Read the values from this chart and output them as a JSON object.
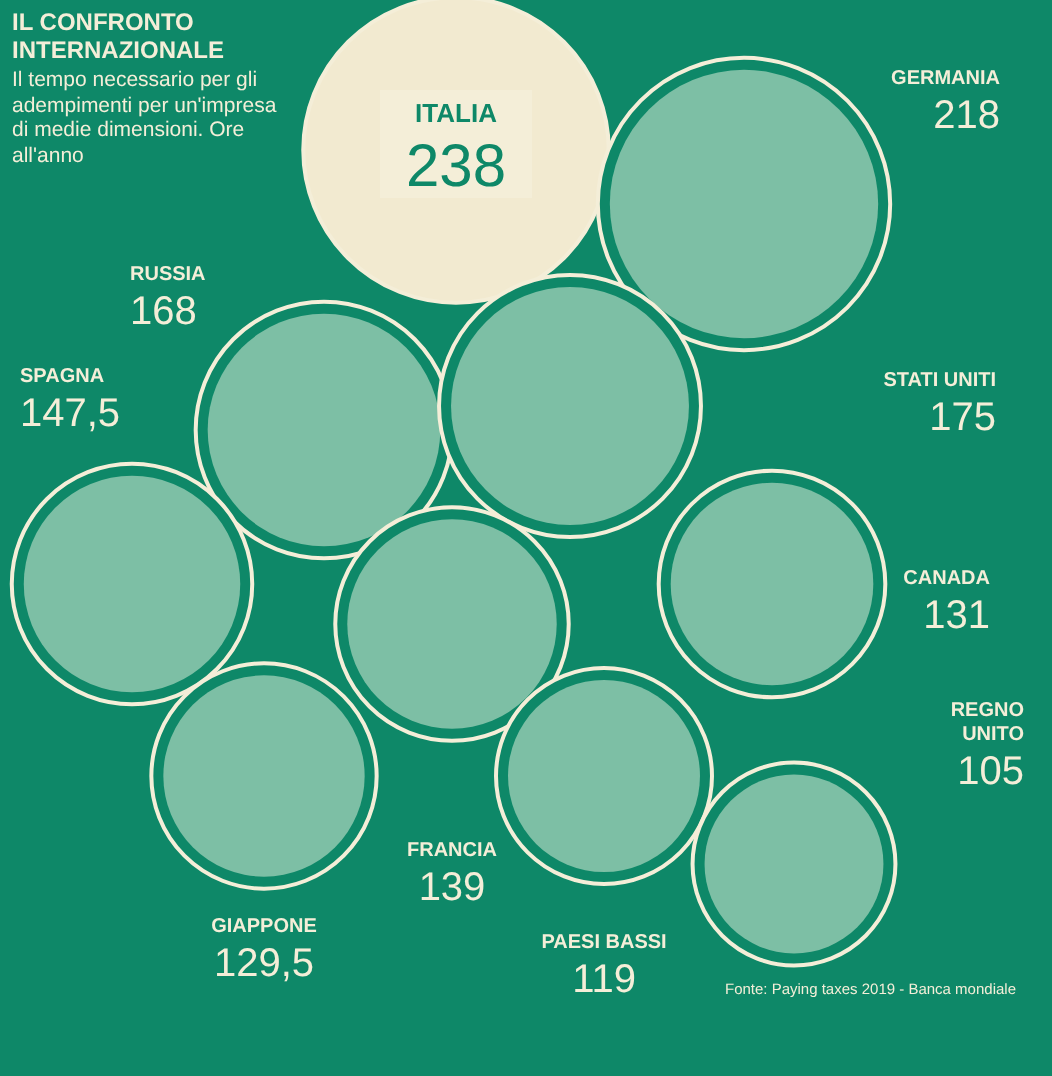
{
  "chart_data": {
    "type": "other",
    "title": "IL CONFRONTO INTERNAZIONALE",
    "subtitle": "Il tempo necessario per gli adempimenti per un'impresa di medie dimensioni. Ore all'anno",
    "categories": [
      "ITALIA",
      "GERMANIA",
      "RUSSIA",
      "STATI UNITI",
      "SPAGNA",
      "CANADA",
      "FRANCIA",
      "GIAPPONE",
      "PAESI BASSI",
      "REGNO UNITO"
    ],
    "values": [
      238,
      218,
      168,
      175,
      147.5,
      131,
      139,
      129.5,
      119,
      105
    ],
    "value_labels": [
      "238",
      "218",
      "168",
      "175",
      "147,5",
      "131",
      "139",
      "129,5",
      "119",
      "105"
    ],
    "colors": [
      "#f2ead0",
      "#7dbfa5",
      "#7dbfa5",
      "#7dbfa5",
      "#7dbfa5",
      "#7dbfa5",
      "#7dbfa5",
      "#7dbfa5",
      "#7dbfa5",
      "#7dbfa5"
    ],
    "annotations": [
      "Fonte: Paying taxes 2019 - Banca mondiale"
    ]
  }
}
